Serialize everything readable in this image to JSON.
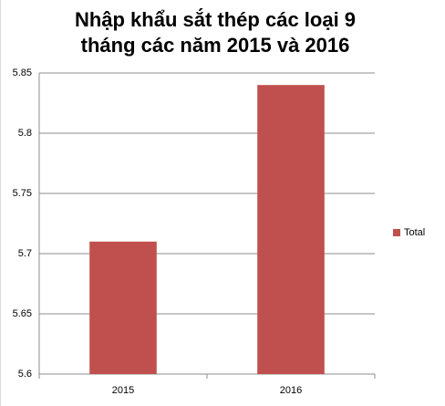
{
  "chart_data": {
    "type": "bar",
    "title": "Nhập khẩu sắt thép các loại 9 tháng các năm 2015 và 2016",
    "categories": [
      "2015",
      "2016"
    ],
    "series": [
      {
        "name": "Total",
        "color": "#c0504d",
        "values": [
          5.71,
          5.84
        ]
      }
    ],
    "ylim": [
      5.6,
      5.85
    ],
    "yticks": [
      5.6,
      5.65,
      5.7,
      5.75,
      5.8,
      5.85
    ],
    "grid": true,
    "legend": "right"
  }
}
